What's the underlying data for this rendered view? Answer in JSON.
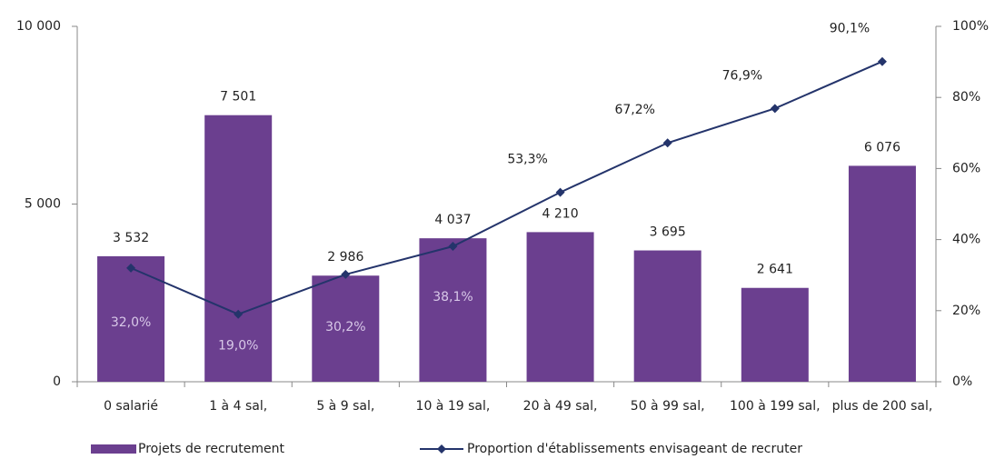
{
  "chart_data": {
    "type": "bar",
    "categories": [
      "0 salarié",
      "1 à 4 sal,",
      "5 à 9 sal,",
      "10 à 19 sal,",
      "20 à 49 sal,",
      "50 à 99 sal,",
      "100 à 199 sal,",
      "plus de 200 sal,"
    ],
    "series": [
      {
        "name": "Projets de recrutement",
        "type": "bar",
        "color": "#6b3f8f",
        "values": [
          3532,
          7501,
          2986,
          4037,
          4210,
          3695,
          2641,
          6076
        ],
        "value_labels": [
          "3 532",
          "7 501",
          "2 986",
          "4 037",
          "4 210",
          "3 695",
          "2 641",
          "6 076"
        ]
      },
      {
        "name": "Proportion d'établissements envisageant de recruter",
        "type": "line",
        "axis": "y2",
        "color": "#24346b",
        "values": [
          32.0,
          19.0,
          30.2,
          38.1,
          53.3,
          67.2,
          76.9,
          90.1
        ],
        "value_labels": [
          "32,0%",
          "19,0%",
          "30,2%",
          "38,1%",
          "53,3%",
          "67,2%",
          "76,9%",
          "90,1%"
        ]
      }
    ],
    "ylim": [
      0,
      10000
    ],
    "yticks": [
      0,
      {
        "value": 5000,
        "label": "5 000"
      },
      {
        "value": 10000,
        "label": "10 000"
      }
    ],
    "y2lim": [
      0,
      100
    ],
    "y2ticks": [
      {
        "value": 0,
        "label": "0%"
      },
      {
        "value": 20,
        "label": "20%"
      },
      {
        "value": 40,
        "label": "40%"
      },
      {
        "value": 60,
        "label": "60%"
      },
      {
        "value": 80,
        "label": "80%"
      },
      {
        "value": 100,
        "label": "100%"
      }
    ],
    "legend": "bottom"
  }
}
